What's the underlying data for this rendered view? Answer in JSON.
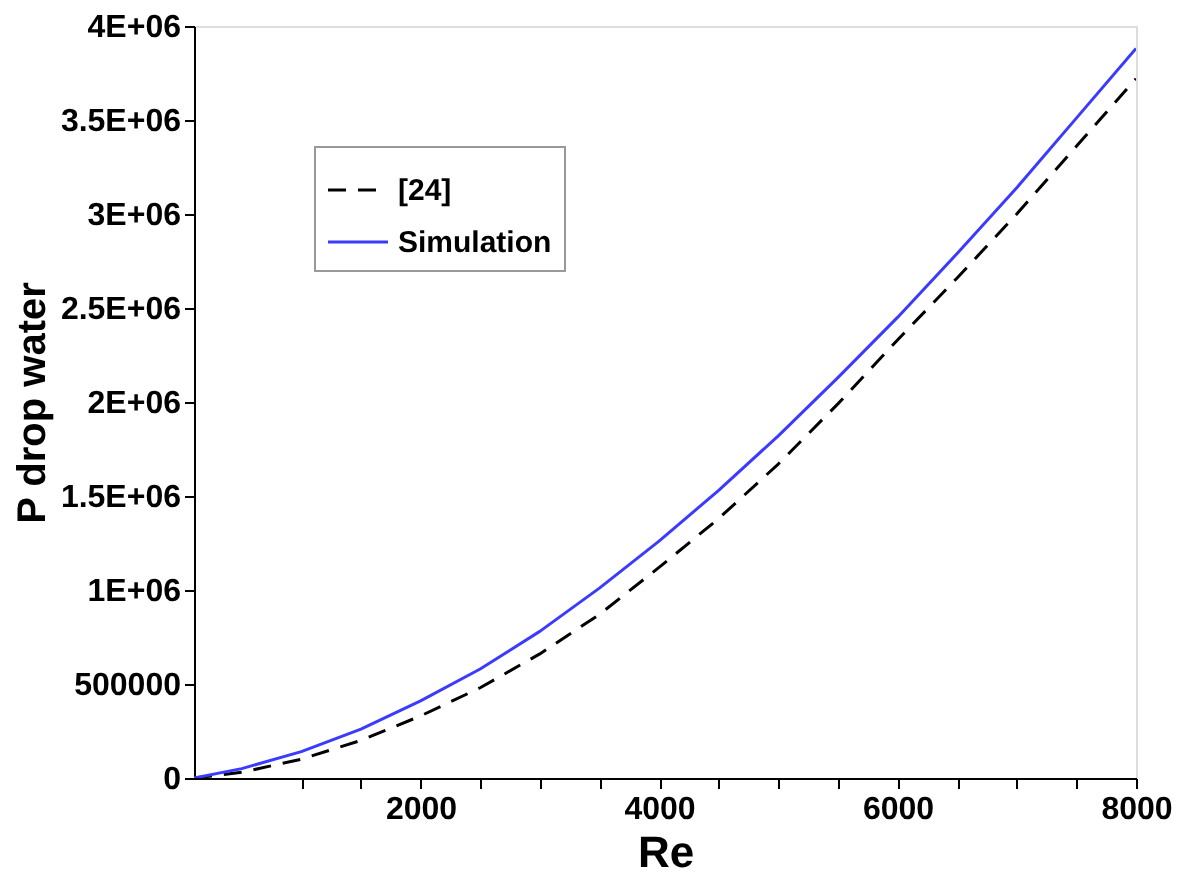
{
  "chart_data": {
    "type": "line",
    "xlabel": "Re",
    "ylabel": "P drop water",
    "xlim": [
      100,
      8000
    ],
    "xticks": [
      {
        "value": 1000,
        "label": null
      },
      {
        "value": 1500,
        "label": null
      },
      2000,
      {
        "value": 2500,
        "label": null
      },
      {
        "value": 3000,
        "label": null
      },
      {
        "value": 3500,
        "label": null
      },
      4000,
      {
        "value": 4500,
        "label": null
      },
      {
        "value": 5000,
        "label": null
      },
      {
        "value": 5500,
        "label": null
      },
      6000,
      {
        "value": 6500,
        "label": null
      },
      {
        "value": 7000,
        "label": null
      },
      {
        "value": 7500,
        "label": null
      },
      8000
    ],
    "ylim": [
      0,
      4000000
    ],
    "yticks": [
      0,
      500000,
      {
        "value": 1000000,
        "label": "1E+06"
      },
      {
        "value": 1500000,
        "label": "1.5E+06"
      },
      {
        "value": 2000000,
        "label": "2E+06"
      },
      {
        "value": 2500000,
        "label": "2.5E+06"
      },
      {
        "value": 3000000,
        "label": "3E+06"
      },
      {
        "value": 3500000,
        "label": "3.5E+06"
      },
      {
        "value": 4000000,
        "label": "4E+06"
      }
    ],
    "x": [
      100,
      500,
      1000,
      1500,
      2000,
      2500,
      3000,
      3500,
      4000,
      4500,
      5000,
      5500,
      6000,
      6500,
      7000,
      7500,
      8000
    ],
    "series": [
      {
        "name": "[24]",
        "color": "#000000",
        "line_style": "dashed",
        "values": [
          0,
          30000,
          100000,
          200000,
          330000,
          480000,
          660000,
          870000,
          1120000,
          1380000,
          1670000,
          1990000,
          2330000,
          2660000,
          3000000,
          3360000,
          3720000
        ]
      },
      {
        "name": "Simulation",
        "color": "#3b3bff",
        "line_style": "solid",
        "values": [
          0,
          50000,
          140000,
          260000,
          410000,
          580000,
          780000,
          1010000,
          1260000,
          1530000,
          1820000,
          2130000,
          2450000,
          2790000,
          3140000,
          3510000,
          3880000
        ]
      }
    ],
    "legend": "top left",
    "grid": false,
    "marker": "none"
  }
}
